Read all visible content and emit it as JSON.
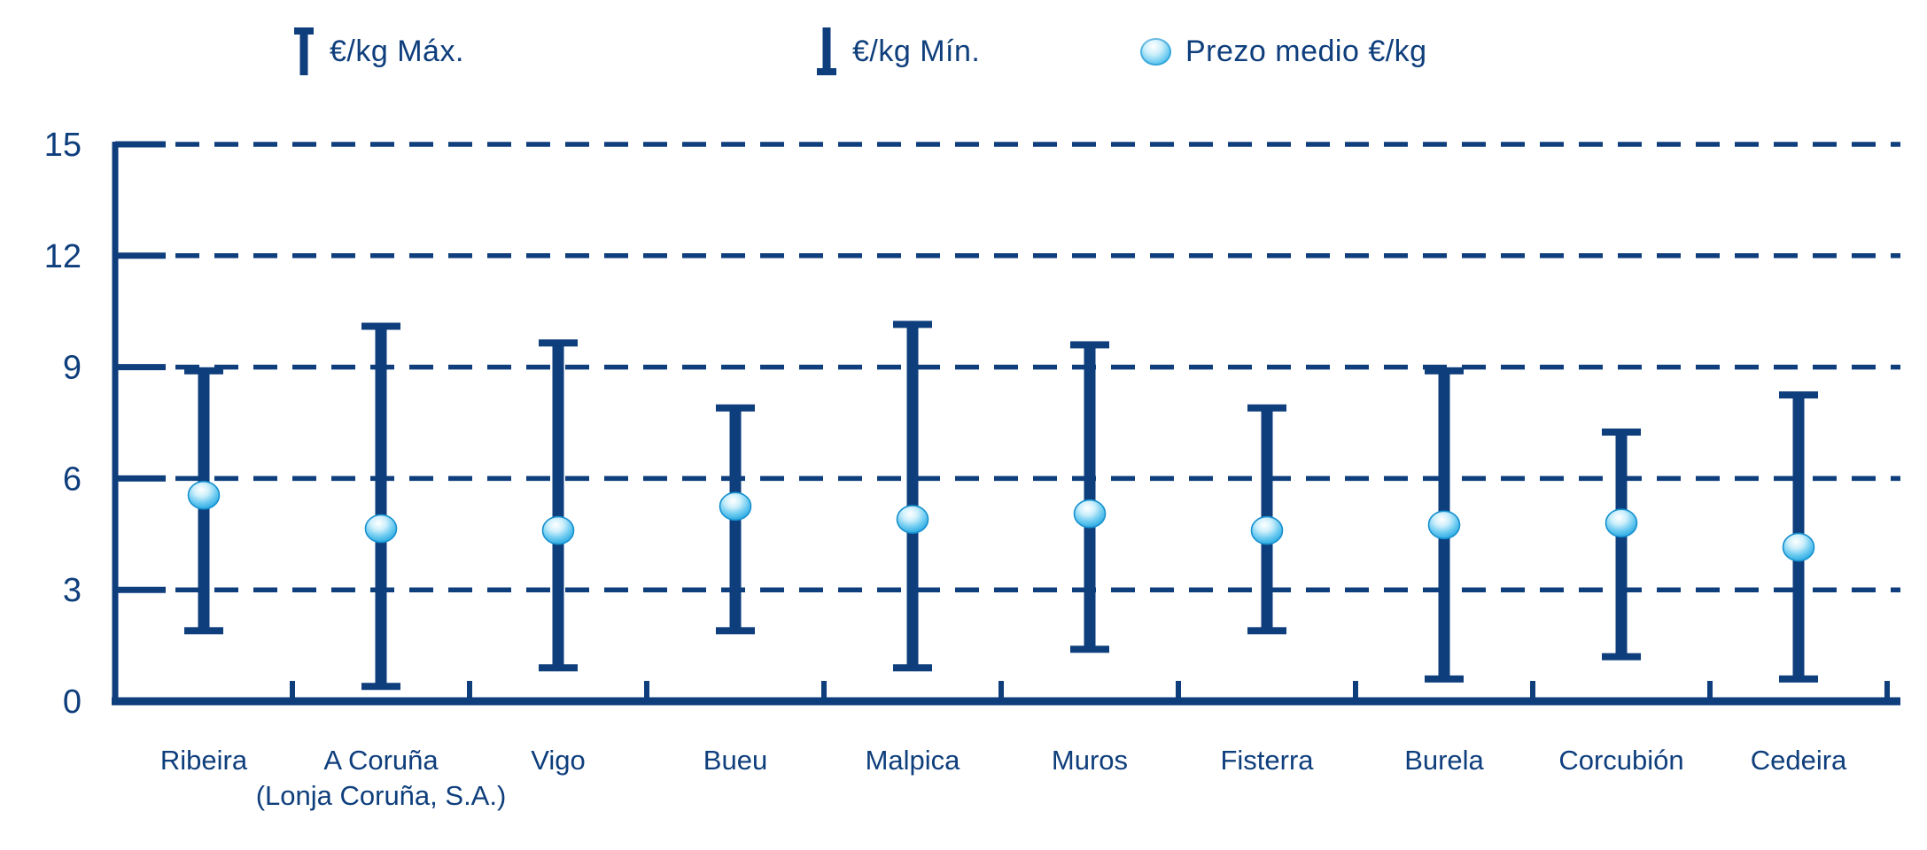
{
  "chart_data": {
    "type": "error-bar-range",
    "title": "",
    "legend": [
      {
        "icon": "max-cap-icon",
        "label": "€/kg Máx."
      },
      {
        "icon": "min-cap-icon",
        "label": "€/kg Mín."
      },
      {
        "icon": "mean-sphere-icon",
        "label": "Prezo medio €/kg"
      }
    ],
    "categories": [
      [
        "Ribeira"
      ],
      [
        "A Coruña",
        "(Lonja Coruña, S.A.)"
      ],
      [
        "Vigo"
      ],
      [
        "Bueu"
      ],
      [
        "Malpica"
      ],
      [
        "Muros"
      ],
      [
        "Fisterra"
      ],
      [
        "Burela"
      ],
      [
        "Corcubión"
      ],
      [
        "Cedeira"
      ]
    ],
    "series": [
      {
        "name": "€/kg Máx.",
        "values": [
          8.9,
          10.1,
          9.65,
          7.9,
          10.15,
          9.6,
          7.9,
          8.9,
          7.25,
          8.25
        ]
      },
      {
        "name": "€/kg Mín.",
        "values": [
          1.9,
          0.4,
          0.9,
          1.9,
          0.9,
          1.4,
          1.9,
          0.6,
          1.2,
          0.6
        ]
      },
      {
        "name": "Prezo medio €/kg",
        "values": [
          5.55,
          4.65,
          4.6,
          5.25,
          4.9,
          5.05,
          4.6,
          4.75,
          4.8,
          4.15
        ]
      }
    ],
    "y_axis": {
      "ticks": [
        0,
        3,
        6,
        9,
        12,
        15
      ],
      "range": [
        0,
        15
      ],
      "grid": "dashed"
    },
    "x_axis": {
      "label": ""
    },
    "colors": {
      "navy": "#0E3E7C",
      "sphere_edge": "#1690CE",
      "sphere_mid": "#6FCCF1",
      "sphere_core": "#17A0DE",
      "sphere_highlight": "#FFFFFF"
    }
  }
}
